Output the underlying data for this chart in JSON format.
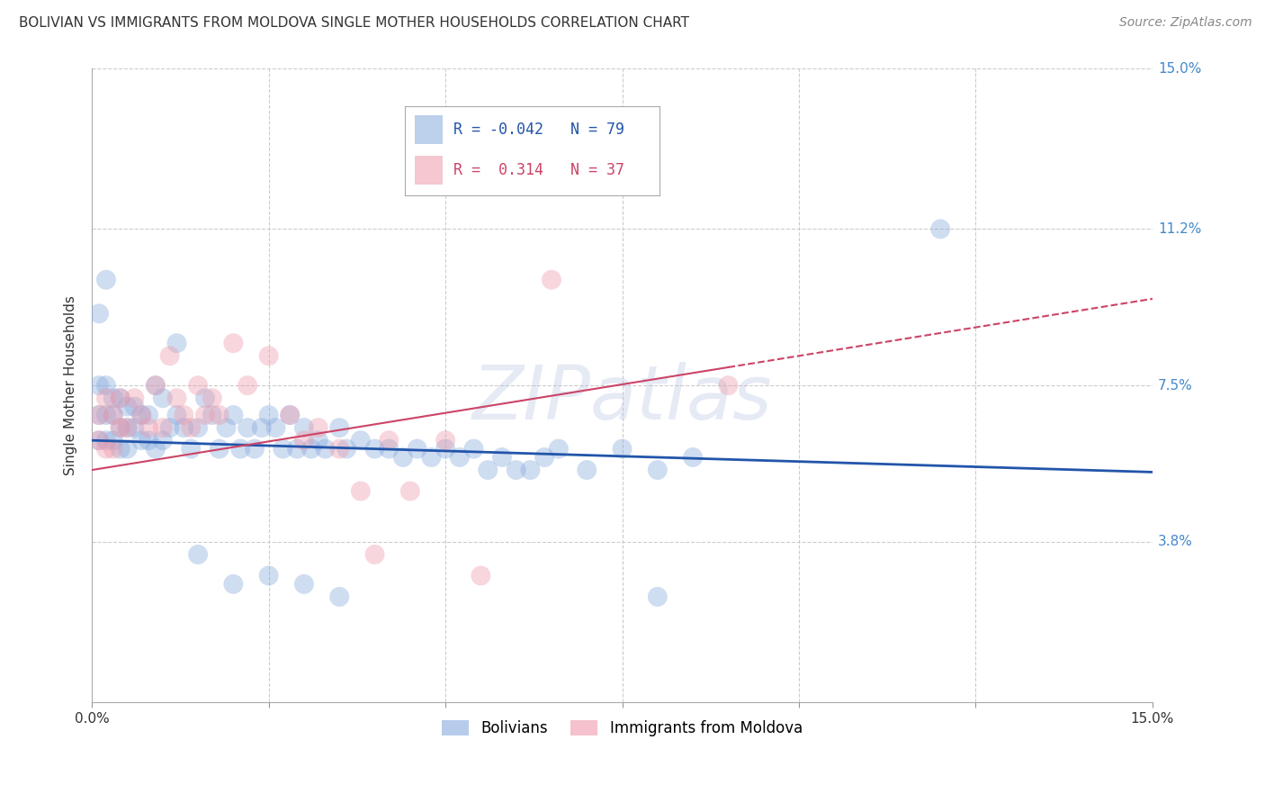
{
  "title": "BOLIVIAN VS IMMIGRANTS FROM MOLDOVA SINGLE MOTHER HOUSEHOLDS CORRELATION CHART",
  "source": "Source: ZipAtlas.com",
  "ylabel": "Single Mother Households",
  "xmin": 0.0,
  "xmax": 0.15,
  "ymin": 0.0,
  "ymax": 0.15,
  "legend_entries": [
    "Bolivians",
    "Immigrants from Moldova"
  ],
  "legend_r": [
    -0.042,
    0.314
  ],
  "legend_n": [
    79,
    37
  ],
  "blue_color": "#88AADD",
  "pink_color": "#EE99AA",
  "blue_line_color": "#2255AA",
  "pink_line_color": "#CC4466",
  "watermark": "ZIPatlas",
  "watermark_color": "#AABBDD",
  "blue_x": [
    0.001,
    0.001,
    0.001,
    0.002,
    0.002,
    0.002,
    0.003,
    0.003,
    0.003,
    0.004,
    0.004,
    0.004,
    0.005,
    0.005,
    0.005,
    0.006,
    0.006,
    0.007,
    0.007,
    0.008,
    0.008,
    0.009,
    0.009,
    0.01,
    0.01,
    0.011,
    0.012,
    0.013,
    0.014,
    0.015,
    0.016,
    0.017,
    0.018,
    0.019,
    0.02,
    0.021,
    0.022,
    0.023,
    0.024,
    0.025,
    0.026,
    0.027,
    0.028,
    0.029,
    0.03,
    0.031,
    0.032,
    0.033,
    0.035,
    0.036,
    0.038,
    0.04,
    0.042,
    0.044,
    0.046,
    0.048,
    0.05,
    0.052,
    0.054,
    0.056,
    0.058,
    0.06,
    0.062,
    0.064,
    0.066,
    0.07,
    0.075,
    0.08,
    0.085,
    0.001,
    0.002,
    0.012,
    0.015,
    0.02,
    0.025,
    0.03,
    0.035,
    0.08,
    0.12
  ],
  "blue_y": [
    0.062,
    0.068,
    0.075,
    0.062,
    0.068,
    0.075,
    0.062,
    0.068,
    0.072,
    0.06,
    0.065,
    0.072,
    0.06,
    0.065,
    0.07,
    0.065,
    0.07,
    0.062,
    0.068,
    0.062,
    0.068,
    0.06,
    0.075,
    0.062,
    0.072,
    0.065,
    0.068,
    0.065,
    0.06,
    0.065,
    0.072,
    0.068,
    0.06,
    0.065,
    0.068,
    0.06,
    0.065,
    0.06,
    0.065,
    0.068,
    0.065,
    0.06,
    0.068,
    0.06,
    0.065,
    0.06,
    0.062,
    0.06,
    0.065,
    0.06,
    0.062,
    0.06,
    0.06,
    0.058,
    0.06,
    0.058,
    0.06,
    0.058,
    0.06,
    0.055,
    0.058,
    0.055,
    0.055,
    0.058,
    0.06,
    0.055,
    0.06,
    0.055,
    0.058,
    0.092,
    0.1,
    0.085,
    0.035,
    0.028,
    0.03,
    0.028,
    0.025,
    0.025,
    0.112
  ],
  "pink_x": [
    0.001,
    0.001,
    0.002,
    0.002,
    0.003,
    0.003,
    0.004,
    0.004,
    0.005,
    0.006,
    0.007,
    0.008,
    0.009,
    0.01,
    0.011,
    0.012,
    0.013,
    0.014,
    0.015,
    0.016,
    0.017,
    0.018,
    0.02,
    0.022,
    0.025,
    0.028,
    0.03,
    0.032,
    0.035,
    0.038,
    0.04,
    0.042,
    0.045,
    0.05,
    0.055,
    0.065,
    0.09
  ],
  "pink_y": [
    0.062,
    0.068,
    0.06,
    0.072,
    0.06,
    0.068,
    0.065,
    0.072,
    0.065,
    0.072,
    0.068,
    0.065,
    0.075,
    0.065,
    0.082,
    0.072,
    0.068,
    0.065,
    0.075,
    0.068,
    0.072,
    0.068,
    0.085,
    0.075,
    0.082,
    0.068,
    0.062,
    0.065,
    0.06,
    0.05,
    0.035,
    0.062,
    0.05,
    0.062,
    0.03,
    0.1,
    0.075
  ],
  "circle_size": 250,
  "alpha": 0.4,
  "grid_color": "#CCCCCC",
  "background_color": "#FFFFFF",
  "title_fontsize": 11,
  "axis_label_fontsize": 11,
  "tick_fontsize": 11,
  "source_fontsize": 10,
  "legend_fontsize": 12,
  "blue_intercept": 0.062,
  "blue_slope": -0.05,
  "pink_intercept": 0.055,
  "pink_slope": 0.27
}
